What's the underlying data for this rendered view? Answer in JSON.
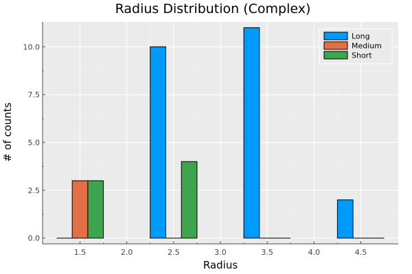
{
  "chart_data": {
    "type": "bar",
    "title": "Radius Distribution (Complex)",
    "xlabel": "Radius",
    "ylabel": "# of counts",
    "x": [
      1.5,
      2.5,
      3.5,
      4.5
    ],
    "xlim": [
      1.1,
      4.9
    ],
    "ylim": [
      -0.3,
      11.3
    ],
    "x_ticks": [
      1.5,
      2.0,
      2.5,
      3.0,
      3.5,
      4.0,
      4.5
    ],
    "x_tick_labels": [
      "1.5",
      "2.0",
      "2.5",
      "3.0",
      "3.5",
      "4.0",
      "4.5"
    ],
    "y_ticks": [
      0,
      2.5,
      5,
      7.5,
      10
    ],
    "y_tick_labels": [
      "0.0",
      "2.5",
      "5.0",
      "7.5",
      "10.0"
    ],
    "grid": true,
    "legend_position": "top-right",
    "bin_width": 0.5,
    "series": [
      {
        "name": "Long",
        "color": "#009AFA",
        "values": [
          0,
          10,
          11,
          2
        ]
      },
      {
        "name": "Medium",
        "color": "#E36F47",
        "values": [
          3,
          0,
          0,
          0
        ]
      },
      {
        "name": "Short",
        "color": "#3EA44E",
        "values": [
          3,
          4,
          0,
          0
        ]
      }
    ]
  }
}
